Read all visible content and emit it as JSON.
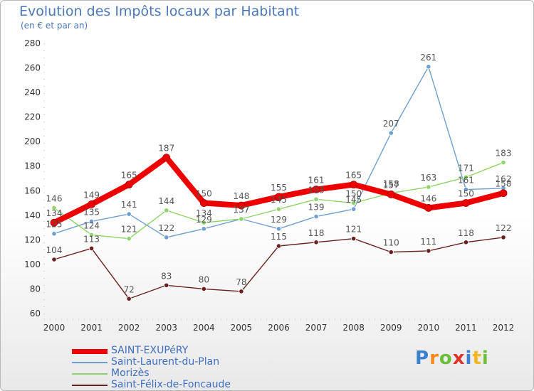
{
  "header": {
    "title": "Evolution des Impôts locaux par Habitant",
    "subtitle": "(en € et par an)"
  },
  "chart_data": {
    "type": "line",
    "x": [
      "2000",
      "2001",
      "2002",
      "2003",
      "2004",
      "2005",
      "2006",
      "2007",
      "2008",
      "2009",
      "2010",
      "2011",
      "2012"
    ],
    "ylim": [
      60,
      280
    ],
    "yticks": [
      60,
      80,
      100,
      120,
      140,
      160,
      180,
      200,
      220,
      240,
      260,
      280
    ],
    "grid": false,
    "legend_position": "bottom-left",
    "series": [
      {
        "name": "SAINT-EXUPéRY",
        "color": "#ee0000",
        "emphasis": true,
        "values": [
          134,
          149,
          165,
          187,
          150,
          148,
          155,
          161,
          165,
          157,
          146,
          150,
          158
        ],
        "labels": [
          "134",
          "149",
          "165",
          "187",
          "150",
          "148",
          "155",
          "161",
          "165",
          "157",
          "146",
          "150",
          "158"
        ]
      },
      {
        "name": "Saint-Laurent-du-Plan",
        "color": "#6e9fd0",
        "emphasis": false,
        "values": [
          125,
          135,
          141,
          122,
          129,
          137,
          129,
          139,
          145,
          207,
          261,
          161,
          162
        ],
        "labels": [
          "125",
          "135",
          "141",
          "122",
          "129",
          "137",
          "129",
          "139",
          "145",
          "207",
          "261",
          "161",
          "162"
        ]
      },
      {
        "name": "Morizès",
        "color": "#8fd46a",
        "emphasis": false,
        "values": [
          146,
          124,
          121,
          144,
          134,
          137,
          145,
          153,
          150,
          158,
          163,
          171,
          183
        ],
        "labels": [
          "146",
          "124",
          "121",
          "144",
          "134",
          "137",
          "145",
          "153",
          "150",
          "158",
          "163",
          "171",
          "183"
        ]
      },
      {
        "name": "Saint-Félix-de-Foncaude",
        "color": "#6a2020",
        "emphasis": false,
        "values": [
          104,
          113,
          72,
          83,
          80,
          78,
          115,
          118,
          121,
          110,
          111,
          118,
          122
        ],
        "labels": [
          "104",
          "113",
          "72",
          "83",
          "80",
          "78",
          "115",
          "118",
          "121",
          "110",
          "111",
          "118",
          "122"
        ]
      }
    ]
  },
  "logo": {
    "letters": [
      "P",
      "r",
      "o",
      "x",
      "i",
      "t",
      "i"
    ]
  }
}
